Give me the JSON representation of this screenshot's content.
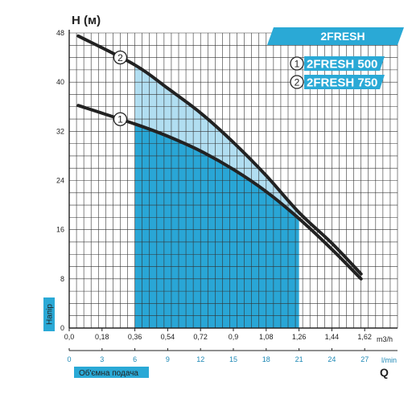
{
  "chart_data": {
    "type": "line",
    "ylabel": "H (м)",
    "y_tag": "Напір",
    "xlabel": "Q",
    "x_tag": "Об'ємна подача",
    "x_unit_top": "m3/h",
    "x_unit_bottom": "l/min",
    "xlim": [
      0,
      1.8
    ],
    "ylim": [
      0,
      48
    ],
    "x_ticks_top": [
      "0,0",
      "0,18",
      "0,36",
      "0,54",
      "0,72",
      "0,9",
      "1,08",
      "1,26",
      "1,44",
      "1,62"
    ],
    "x_ticks_bottom": [
      "0",
      "3",
      "6",
      "9",
      "12",
      "15",
      "18",
      "21",
      "24",
      "27"
    ],
    "y_ticks": [
      "0",
      "8",
      "16",
      "24",
      "32",
      "40",
      "48"
    ],
    "banner": "2FRESH",
    "operating_range": [
      0.36,
      1.26
    ],
    "series": [
      {
        "name": "2FRESH 500",
        "marker": "1",
        "x": [
          0.05,
          0.36,
          0.54,
          0.72,
          0.9,
          1.08,
          1.26,
          1.44,
          1.6
        ],
        "values": [
          36.2,
          33.2,
          31.2,
          28.8,
          25.8,
          22.2,
          17.8,
          12.8,
          8.0
        ]
      },
      {
        "name": "2FRESH 750",
        "marker": "2",
        "x": [
          0.05,
          0.36,
          0.54,
          0.72,
          0.9,
          1.08,
          1.26,
          1.44,
          1.6
        ],
        "values": [
          47.5,
          42.8,
          39.0,
          35.0,
          30.2,
          24.8,
          18.8,
          13.8,
          8.8
        ]
      }
    ]
  },
  "colors": {
    "accent": "#2aa9d6",
    "fill_dark": "#29a6d6",
    "fill_light": "#a8daf0",
    "curve": "#222222",
    "grid": "#333333"
  }
}
